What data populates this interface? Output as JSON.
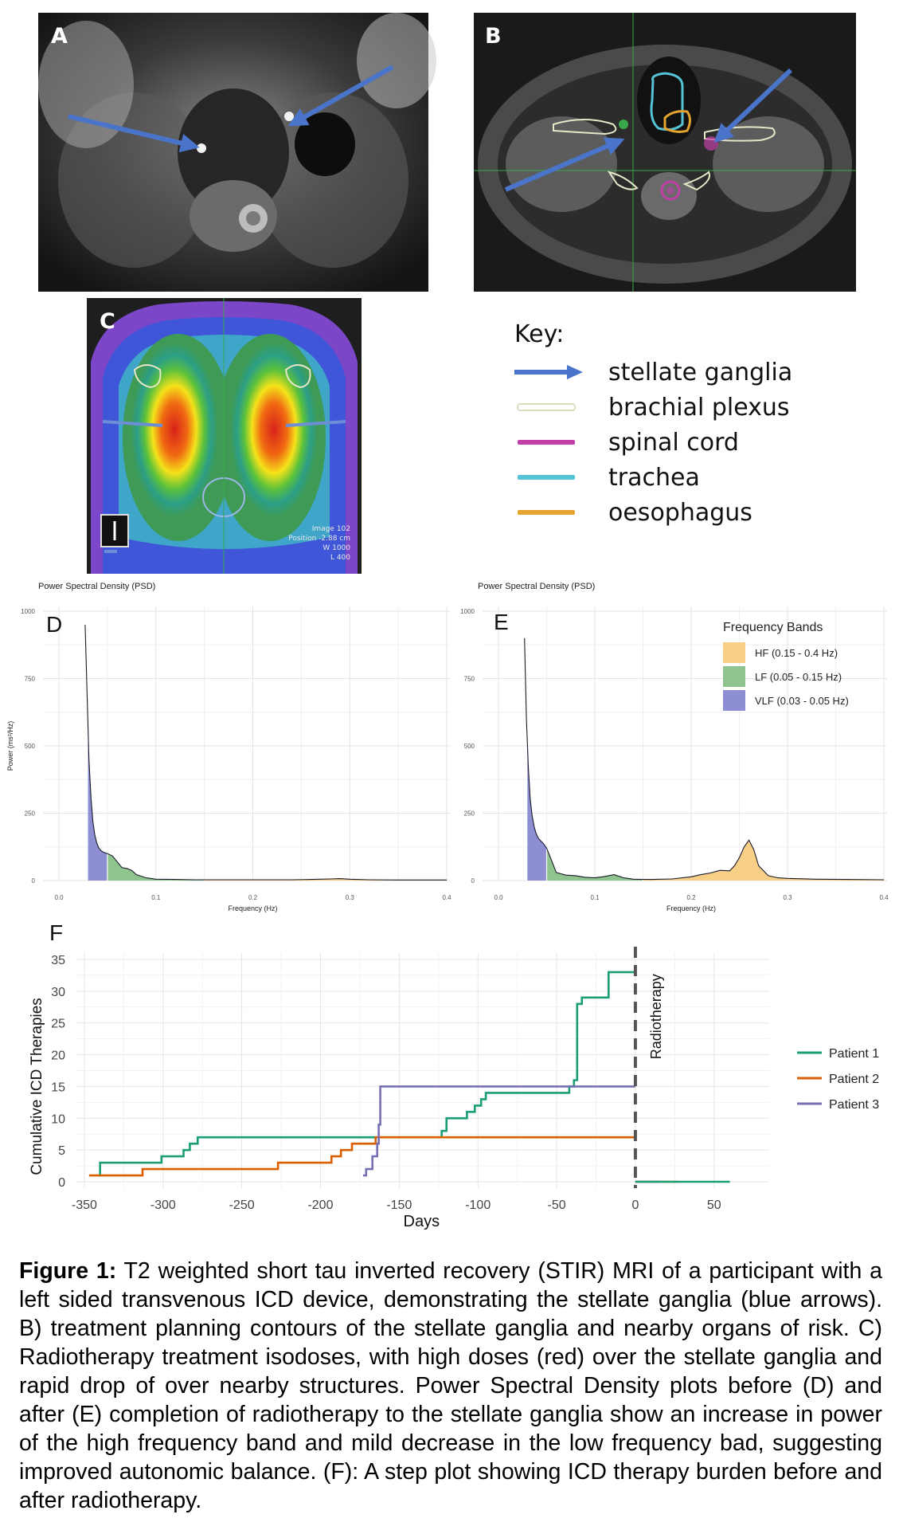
{
  "panels": {
    "A": {
      "letter": "A"
    },
    "B": {
      "letter": "B"
    },
    "C": {
      "letter": "C",
      "overlay_text": [
        "Image 102",
        "Position -2.88 cm",
        "W 1000",
        "L 400"
      ]
    }
  },
  "key": {
    "title": "Key:",
    "items": [
      {
        "label": "stellate ganglia",
        "color": "#4a74c9",
        "style": "arrow"
      },
      {
        "label": "brachial plexus",
        "color": "#e6e6c8",
        "style": "outline"
      },
      {
        "label": "spinal cord",
        "color": "#c040a8",
        "style": "line"
      },
      {
        "label": "trachea",
        "color": "#55c3d6",
        "style": "line"
      },
      {
        "label": "oesophagus",
        "color": "#e3a530",
        "style": "line"
      }
    ]
  },
  "chart_data": [
    {
      "id": "D",
      "type": "area",
      "panel_letter": "D",
      "title": "Power Spectral Density (PSD)",
      "xlabel": "Frequency (Hz)",
      "ylabel": "Power (ms²/Hz)",
      "xlim": [
        0,
        0.4
      ],
      "ylim": [
        0,
        1000
      ],
      "xticks": [
        "0.0",
        "0.1",
        "0.2",
        "0.3",
        "0.4"
      ],
      "yticks": [
        "0",
        "250",
        "500",
        "750",
        "1000"
      ],
      "curve": {
        "x": [
          0.027,
          0.029,
          0.031,
          0.033,
          0.035,
          0.037,
          0.039,
          0.041,
          0.043,
          0.046,
          0.05,
          0.055,
          0.06,
          0.065,
          0.07,
          0.075,
          0.08,
          0.09,
          0.1,
          0.12,
          0.14,
          0.16,
          0.2,
          0.24,
          0.26,
          0.28,
          0.29,
          0.3,
          0.32,
          0.35,
          0.4
        ],
        "y": [
          950,
          700,
          450,
          310,
          220,
          170,
          140,
          122,
          112,
          105,
          100,
          92,
          70,
          48,
          45,
          38,
          22,
          10,
          5,
          4,
          3,
          3,
          3,
          3,
          4,
          6,
          7,
          5,
          3,
          2,
          2
        ]
      },
      "bands": [
        {
          "name": "VLF (0.03 - 0.05 Hz)",
          "range": [
            0.03,
            0.05
          ],
          "color": "#8e8fd3"
        },
        {
          "name": "LF (0.05 - 0.15 Hz)",
          "range": [
            0.05,
            0.15
          ],
          "color": "#8fc48e"
        },
        {
          "name": "HF (0.15 - 0.4 Hz)",
          "range": [
            0.15,
            0.4
          ],
          "color": "#f7cf86"
        }
      ],
      "grid": true
    },
    {
      "id": "E",
      "type": "area",
      "panel_letter": "E",
      "title": "Power Spectral Density (PSD)",
      "xlabel": "Frequency (Hz)",
      "ylabel": "",
      "xlim": [
        0,
        0.4
      ],
      "ylim": [
        0,
        1000
      ],
      "xticks": [
        "0.0",
        "0.1",
        "0.2",
        "0.3",
        "0.4"
      ],
      "yticks": [
        "0",
        "250",
        "500",
        "750",
        "1000"
      ],
      "curve": {
        "x": [
          0.027,
          0.029,
          0.031,
          0.033,
          0.035,
          0.037,
          0.039,
          0.041,
          0.043,
          0.046,
          0.05,
          0.055,
          0.06,
          0.07,
          0.08,
          0.09,
          0.1,
          0.11,
          0.12,
          0.13,
          0.14,
          0.15,
          0.16,
          0.18,
          0.2,
          0.21,
          0.22,
          0.23,
          0.24,
          0.245,
          0.25,
          0.255,
          0.26,
          0.265,
          0.27,
          0.28,
          0.29,
          0.3,
          0.33,
          0.36,
          0.4
        ],
        "y": [
          900,
          600,
          420,
          300,
          240,
          200,
          175,
          160,
          150,
          140,
          120,
          75,
          30,
          20,
          18,
          12,
          10,
          15,
          22,
          10,
          5,
          4,
          4,
          6,
          14,
          22,
          28,
          38,
          36,
          55,
          85,
          125,
          150,
          115,
          55,
          18,
          10,
          8,
          5,
          4,
          3
        ]
      },
      "bands": [
        {
          "name": "VLF (0.03 - 0.05 Hz)",
          "range": [
            0.03,
            0.05
          ],
          "color": "#8e8fd3"
        },
        {
          "name": "LF (0.05 - 0.15 Hz)",
          "range": [
            0.05,
            0.15
          ],
          "color": "#8fc48e"
        },
        {
          "name": "HF (0.15 - 0.4 Hz)",
          "range": [
            0.15,
            0.4
          ],
          "color": "#f7cf86"
        }
      ],
      "legend": {
        "title": "Frequency Bands",
        "placement": "top-right",
        "entries": [
          {
            "label": "HF (0.15 - 0.4 Hz)",
            "color": "#f7cf86"
          },
          {
            "label": "LF (0.05 - 0.15 Hz)",
            "color": "#8fc48e"
          },
          {
            "label": "VLF (0.03 - 0.05 Hz)",
            "color": "#8e8fd3"
          }
        ]
      },
      "grid": true
    },
    {
      "id": "F",
      "type": "line",
      "step": true,
      "panel_letter": "F",
      "xlabel": "Days",
      "ylabel": "Cumulative ICD Therapies",
      "xlim": [
        -355,
        85
      ],
      "ylim": [
        -1,
        36
      ],
      "xticks": [
        -350,
        -300,
        -250,
        -200,
        -150,
        -100,
        -50,
        0,
        50
      ],
      "yticks": [
        0,
        5,
        10,
        15,
        20,
        25,
        30,
        35
      ],
      "vline": {
        "x": 0,
        "label": "Radiotherapy"
      },
      "legend_placement": "right",
      "series": [
        {
          "name": "Patient 1",
          "color": "#1b9e77",
          "before": [
            [
              -341,
              1
            ],
            [
              -340,
              3
            ],
            [
              -301,
              4
            ],
            [
              -287,
              5
            ],
            [
              -283,
              6
            ],
            [
              -278,
              7
            ],
            [
              -123,
              8
            ],
            [
              -120,
              10
            ],
            [
              -107,
              11
            ],
            [
              -102,
              12
            ],
            [
              -98,
              13
            ],
            [
              -95,
              14
            ],
            [
              -42,
              15
            ],
            [
              -39,
              16
            ],
            [
              -37,
              28
            ],
            [
              -34,
              29
            ],
            [
              -17,
              33
            ],
            [
              0,
              33
            ]
          ],
          "after": [
            [
              0,
              0
            ],
            [
              60,
              0
            ]
          ]
        },
        {
          "name": "Patient 2",
          "color": "#d95f02",
          "before": [
            [
              -347,
              1
            ],
            [
              -313,
              2
            ],
            [
              -227,
              3
            ],
            [
              -193,
              4
            ],
            [
              -187,
              5
            ],
            [
              -180,
              6
            ],
            [
              -165,
              7
            ],
            [
              0,
              7
            ]
          ],
          "after": [
            [
              0,
              0
            ],
            [
              27,
              0
            ]
          ]
        },
        {
          "name": "Patient 3",
          "color": "#7570b3",
          "before": [
            [
              -173,
              1
            ],
            [
              -171,
              2
            ],
            [
              -167,
              4
            ],
            [
              -164,
              6
            ],
            [
              -163,
              9
            ],
            [
              -162,
              15
            ],
            [
              0,
              15
            ]
          ],
          "after": [
            [
              0,
              0
            ],
            [
              15,
              0
            ]
          ]
        }
      ],
      "grid": true
    }
  ],
  "caption": {
    "label": "Figure 1:",
    "text": " T2 weighted short tau inverted recovery (STIR) MRI of a participant with a left sided transvenous ICD device, demonstrating the stellate ganglia (blue arrows). B) treatment planning contours of the stellate ganglia and nearby organs of risk. C) Radiotherapy treatment isodoses, with high doses (red) over the stellate ganglia and rapid drop of over nearby structures. Power Spectral Density plots before (D) and after (E) completion of radiotherapy to the stellate ganglia show an increase in power of the high frequency band and mild decrease in the low frequency bad, suggesting improved autonomic balance. (F): A step plot showing ICD therapy burden before and after radiotherapy."
  }
}
